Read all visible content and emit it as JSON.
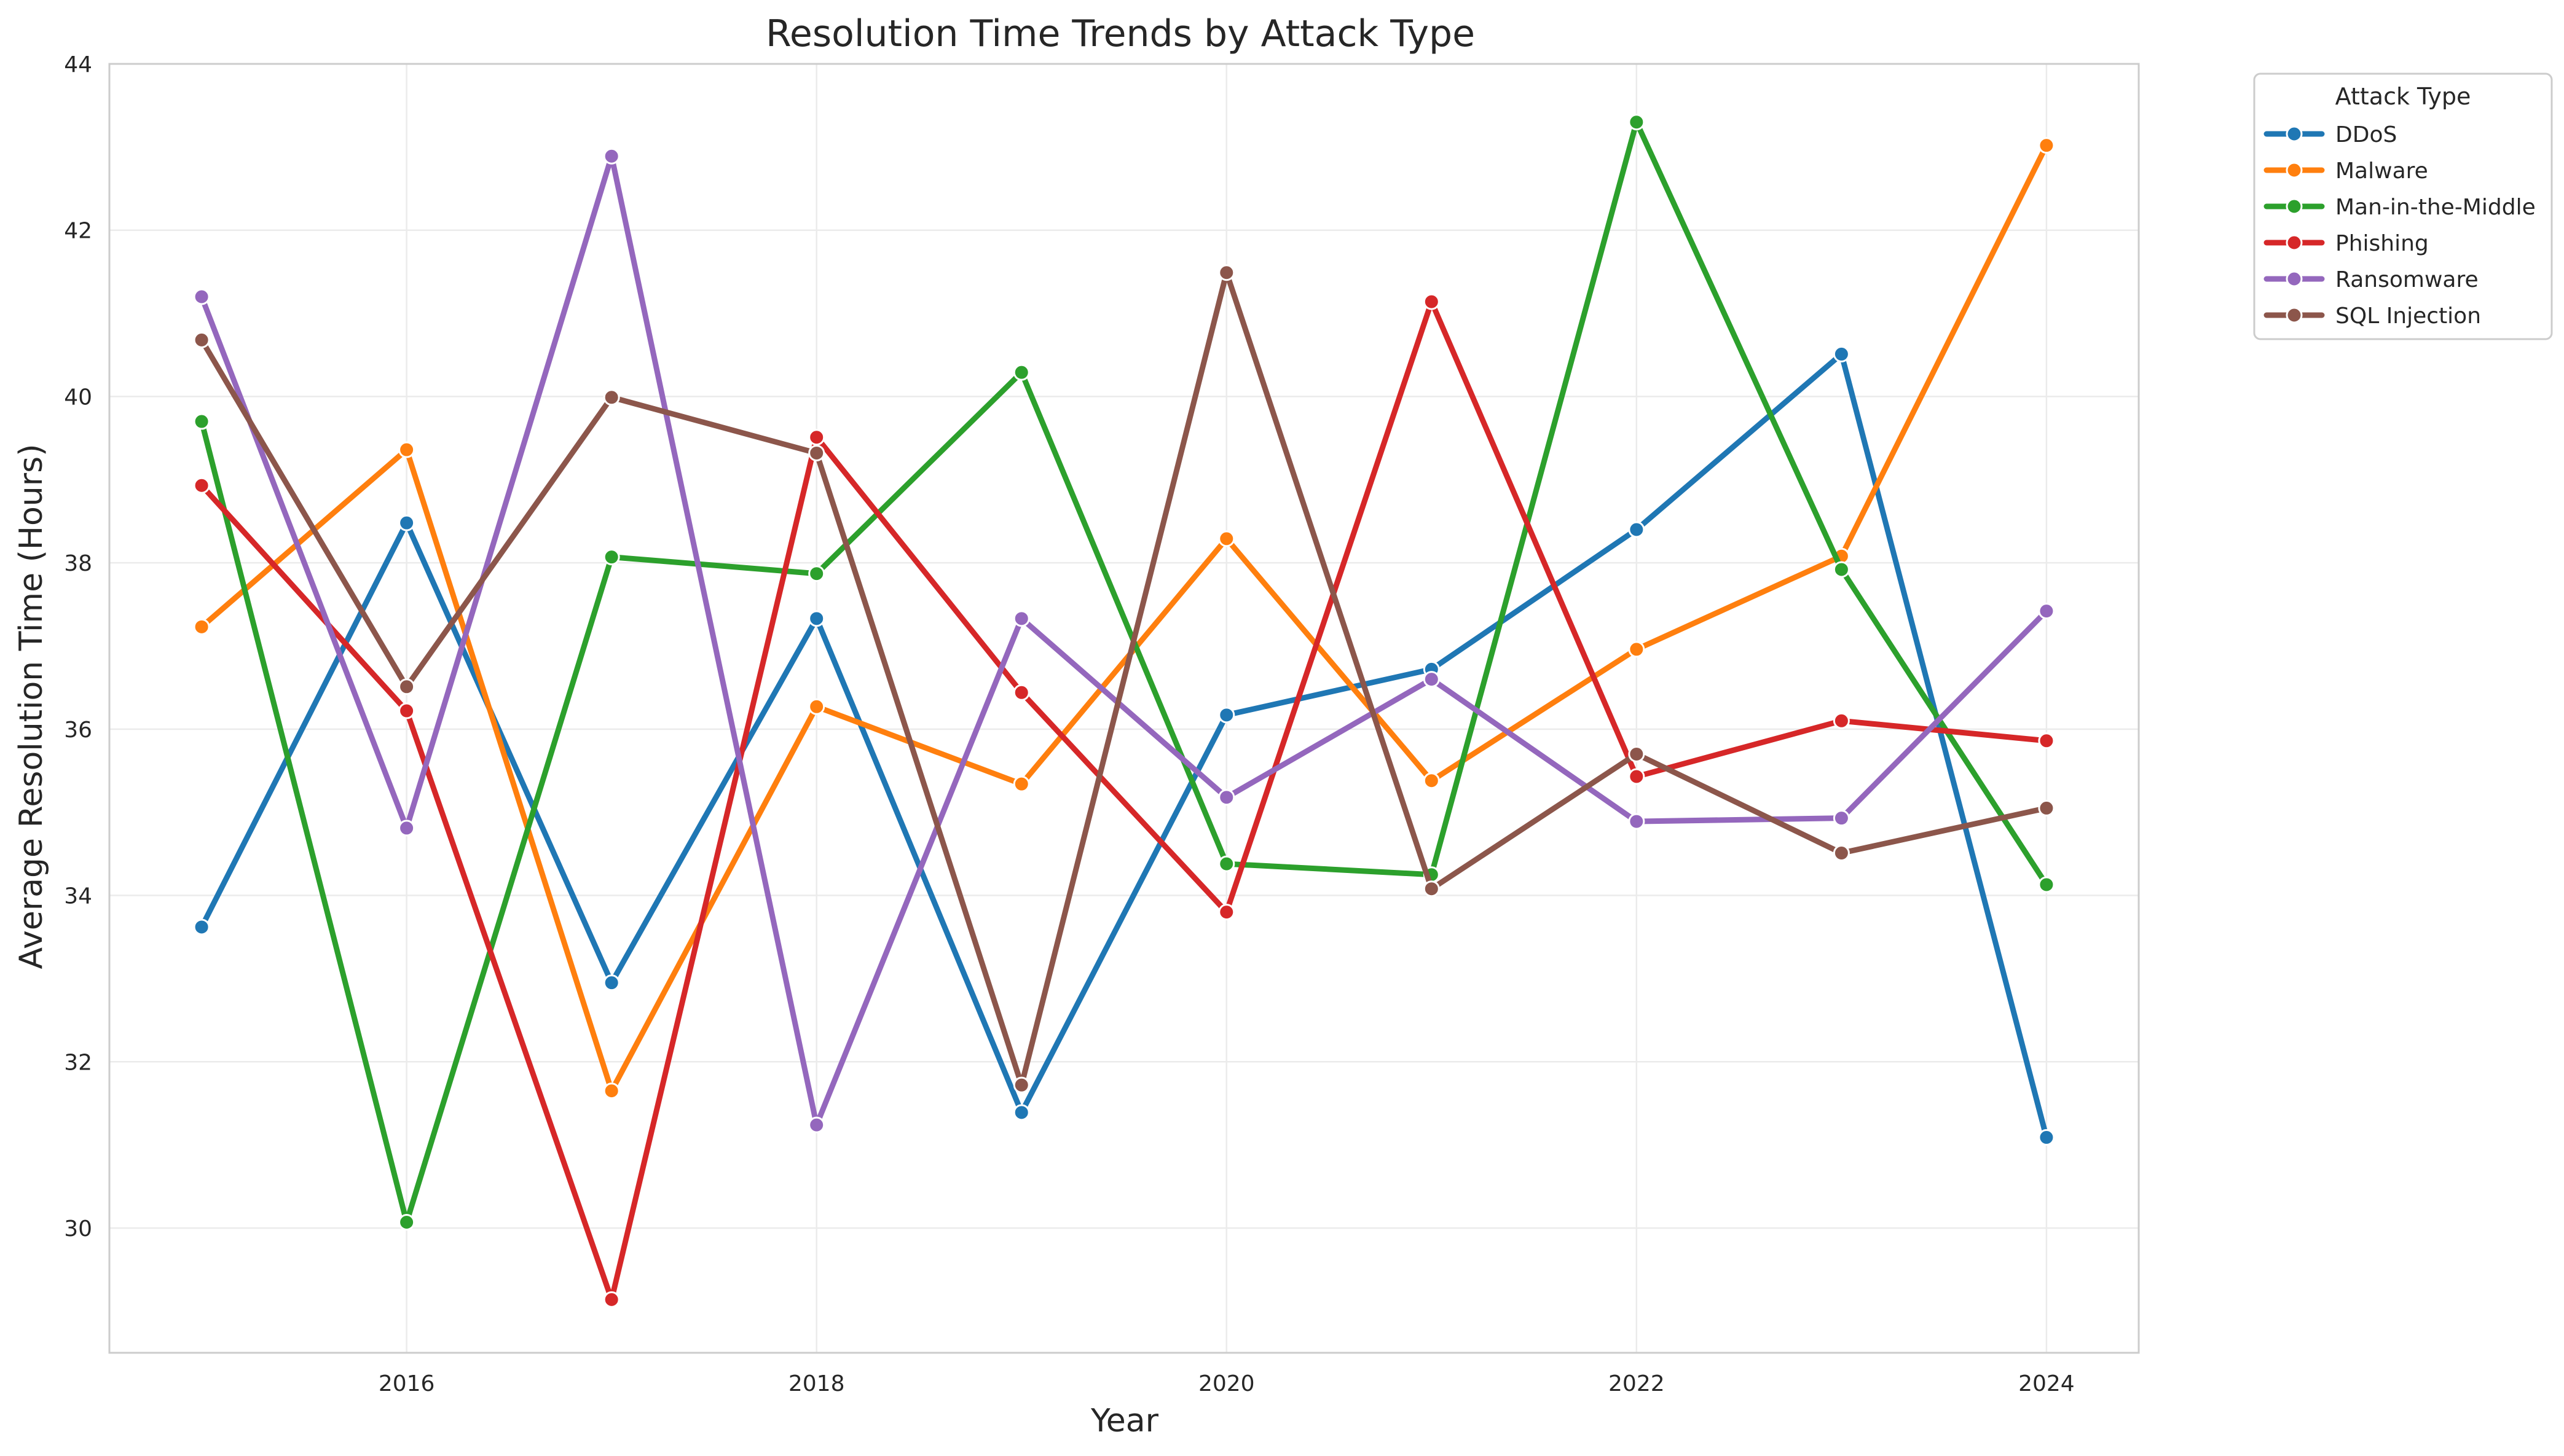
{
  "chart_data": {
    "type": "line",
    "title": "Resolution Time Trends by Attack Type",
    "xlabel": "Year",
    "ylabel": "Average Resolution Time (Hours)",
    "x": [
      2015,
      2016,
      2017,
      2018,
      2019,
      2020,
      2021,
      2022,
      2023,
      2024
    ],
    "x_ticks": [
      "2016",
      "2018",
      "2020",
      "2022",
      "2024"
    ],
    "y_ticks": [
      "30",
      "32",
      "34",
      "36",
      "38",
      "40",
      "42",
      "44"
    ],
    "xlim": [
      2014.55,
      2024.45
    ],
    "ylim": [
      28.5,
      44
    ],
    "grid": true,
    "legend": {
      "title": "Attack Type",
      "placement": "outside-top-right"
    },
    "series": [
      {
        "name": "DDoS",
        "color": "#1f77b4",
        "values": [
          33.62,
          38.48,
          32.95,
          37.33,
          31.39,
          36.17,
          36.72,
          38.4,
          40.51,
          31.09
        ]
      },
      {
        "name": "Malware",
        "color": "#ff7f0e",
        "values": [
          37.23,
          39.36,
          31.65,
          36.27,
          35.34,
          38.29,
          35.38,
          36.96,
          38.08,
          43.02
        ]
      },
      {
        "name": "Man-in-the-Middle",
        "color": "#2ca02c",
        "values": [
          39.7,
          30.07,
          38.07,
          37.87,
          40.29,
          34.38,
          34.25,
          43.3,
          37.92,
          34.13
        ]
      },
      {
        "name": "Phishing",
        "color": "#d62728",
        "values": [
          38.93,
          36.22,
          29.14,
          39.51,
          36.44,
          33.8,
          41.14,
          35.43,
          36.1,
          35.86
        ]
      },
      {
        "name": "Ransomware",
        "color": "#9467bd",
        "values": [
          41.2,
          34.81,
          42.89,
          31.24,
          37.33,
          35.18,
          36.6,
          34.89,
          34.93,
          37.42
        ]
      },
      {
        "name": "SQL Injection",
        "color": "#8c564b",
        "values": [
          40.68,
          36.51,
          39.99,
          39.32,
          31.72,
          41.49,
          34.08,
          35.7,
          34.51,
          35.05
        ]
      }
    ]
  }
}
